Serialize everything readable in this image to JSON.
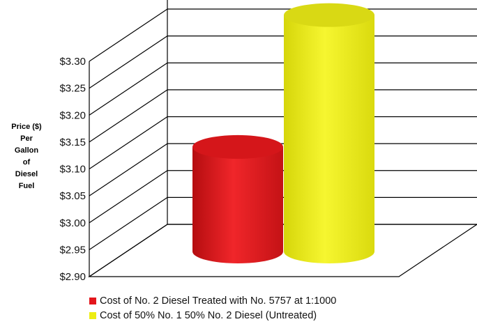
{
  "chart_data": {
    "type": "bar",
    "style": "3d-cylinder",
    "ylabel": [
      "Price ($)",
      "Per",
      "Gallon",
      "of",
      "Diesel",
      "Fuel"
    ],
    "yticks": [
      "$2.90",
      "$2.95",
      "$3.00",
      "$3.05",
      "$3.10",
      "$3.15",
      "$3.20",
      "$3.25",
      "$3.30"
    ],
    "ylim": [
      2.9,
      3.3
    ],
    "grid": true,
    "legend_position": "bottom",
    "series": [
      {
        "name": "Cost of No. 2 Diesel Treated with No. 5757 at 1:1000",
        "value": 3.115,
        "color": "#e3161c"
      },
      {
        "name": "Cost of 50% No. 1  50% No. 2 Diesel (Untreated)",
        "value": 3.36,
        "color": "#eded12"
      }
    ]
  }
}
